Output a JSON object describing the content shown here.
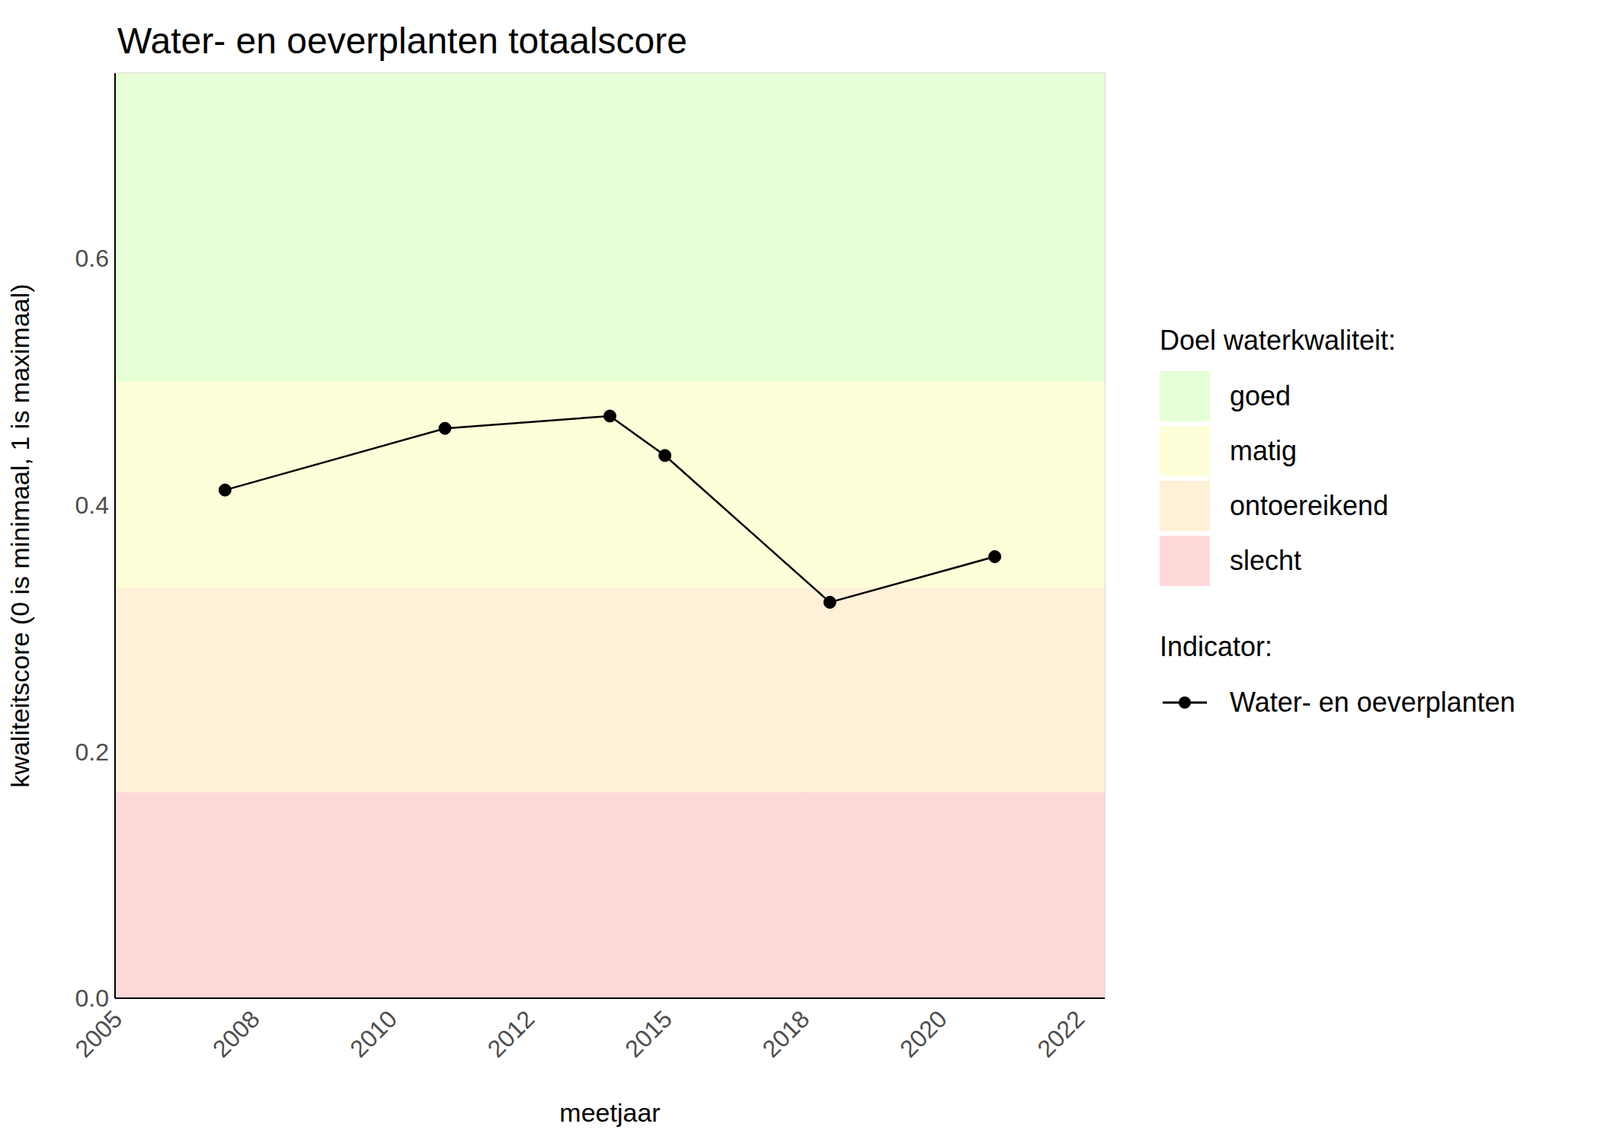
{
  "chart_data": {
    "type": "line",
    "title": "Water- en oeverplanten totaalscore",
    "x_label": "meetjaar",
    "y_label": "kwaliteitscore (0 is minimaal, 1 is maximaal)",
    "x": [
      2007,
      2011,
      2014,
      2015,
      2018,
      2021
    ],
    "series": [
      {
        "name": "Water- en oeverplanten",
        "color": "#000000",
        "marker": "circle",
        "line_style": "solid",
        "values": [
          0.412,
          0.462,
          0.472,
          0.44,
          0.321,
          0.358
        ]
      }
    ],
    "xlim": [
      2005,
      2023
    ],
    "xticks": [
      {
        "value": 2005,
        "label": "2005"
      },
      {
        "value": 2007.5,
        "label": "2008"
      },
      {
        "value": 2010,
        "label": "2010"
      },
      {
        "value": 2012.5,
        "label": "2012"
      },
      {
        "value": 2015,
        "label": "2015"
      },
      {
        "value": 2017.5,
        "label": "2018"
      },
      {
        "value": 2020,
        "label": "2020"
      },
      {
        "value": 2022.5,
        "label": "2022"
      }
    ],
    "ylim": [
      0,
      0.75
    ],
    "yticks": [
      {
        "value": 0,
        "label": "0.0"
      },
      0.2,
      0.4,
      0.6
    ],
    "grid": true,
    "legend": "right",
    "bands_title": "Doel waterkwaliteit:",
    "bands": [
      {
        "name": "goed",
        "color": "#e6ffd6",
        "from": 0.5,
        "to": 0.75
      },
      {
        "name": "matig",
        "color": "#feffd8",
        "from": 0.333,
        "to": 0.5
      },
      {
        "name": "ontoereikend",
        "color": "#fff0d8",
        "from": 0.167,
        "to": 0.333
      },
      {
        "name": "slecht",
        "color": "#ffd8da",
        "from": 0,
        "to": 0.167
      }
    ],
    "series_legend_title": "Indicator:"
  }
}
